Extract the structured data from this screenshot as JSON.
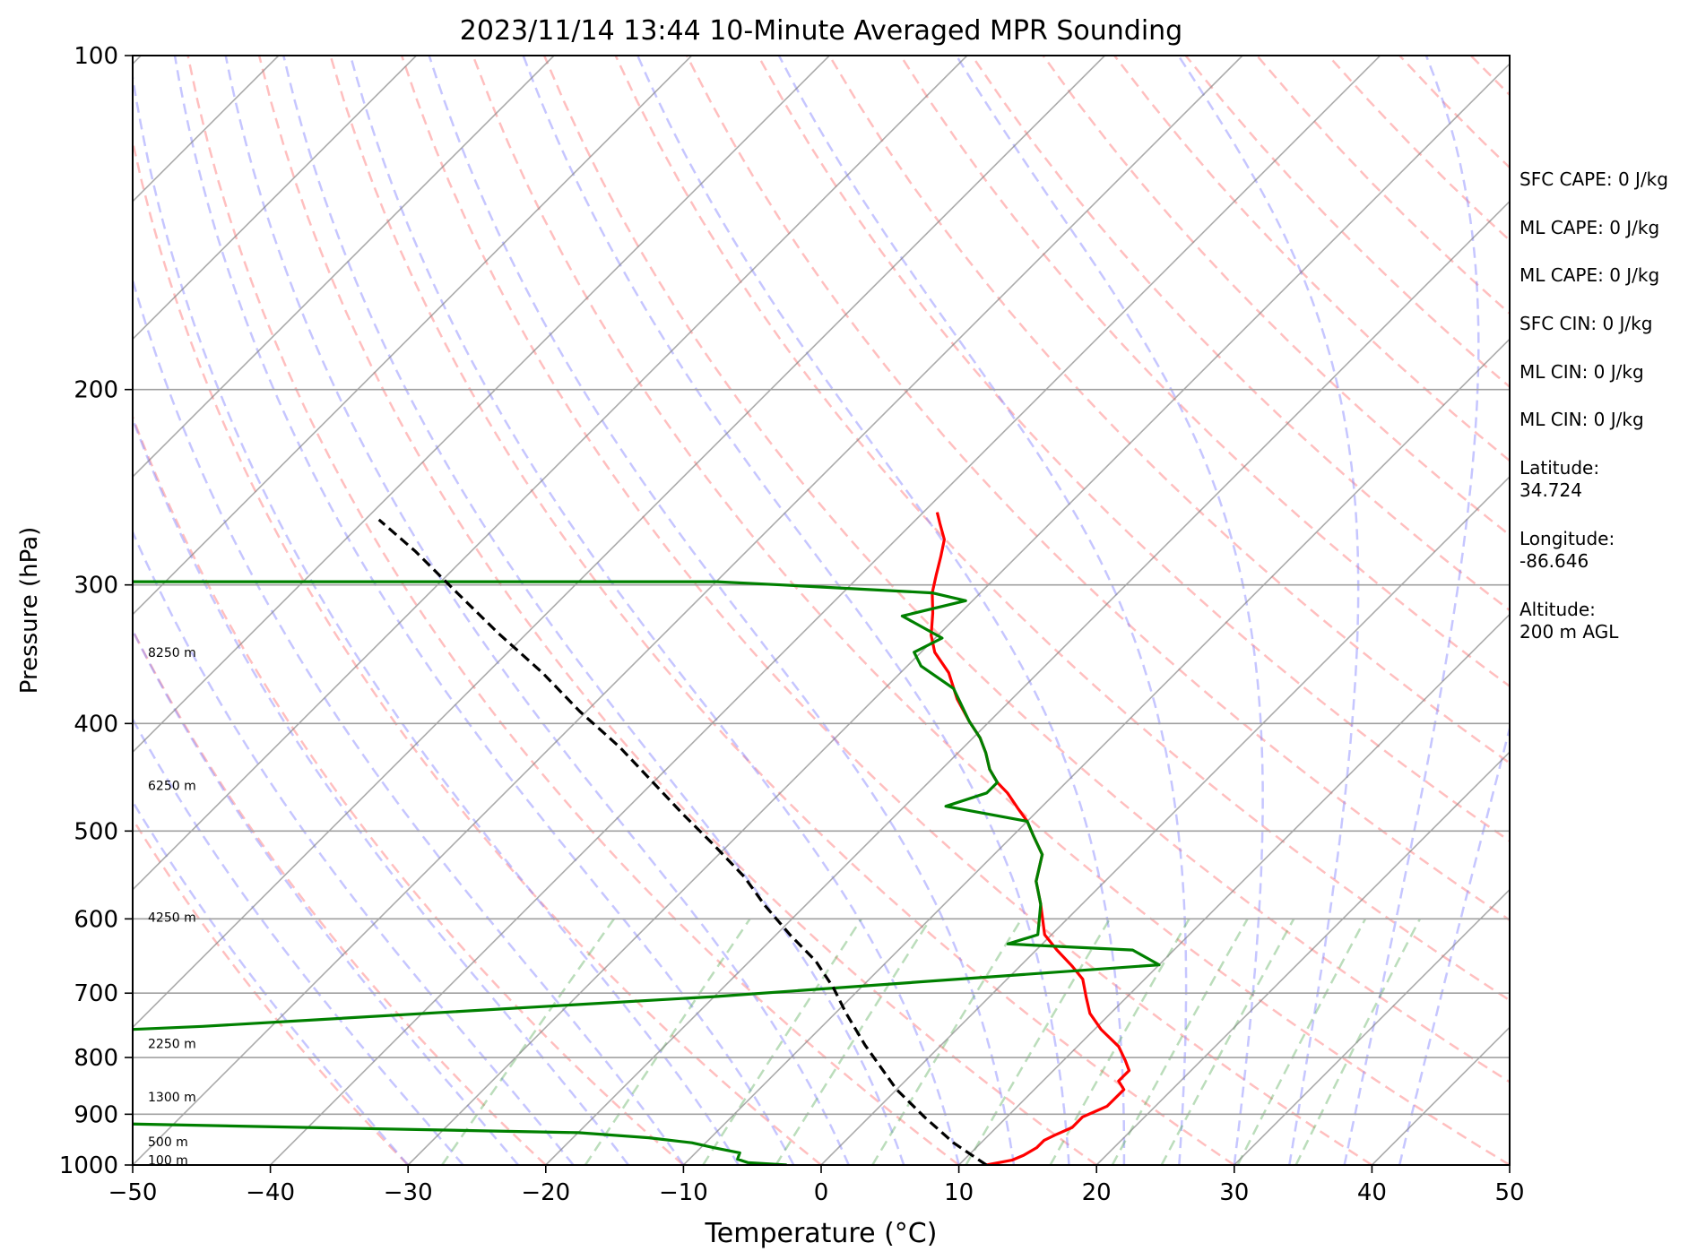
{
  "chart_data": {
    "type": "line",
    "title": "2023/11/14 13:44 10-Minute Averaged MPR Sounding",
    "xlabel": "Temperature (°C)",
    "ylabel": "Pressure (hPa)",
    "xlim": [
      -50,
      50
    ],
    "ylim": [
      1000,
      100
    ],
    "y_scale": "log",
    "skew_t": true,
    "x_ticks": [
      "−50",
      "−40",
      "−30",
      "−20",
      "−10",
      "0",
      "10",
      "20",
      "30",
      "40",
      "50"
    ],
    "y_ticks": [
      "100",
      "200",
      "300",
      "400",
      "500",
      "600",
      "700",
      "800",
      "900",
      "1000"
    ],
    "grid": true,
    "height_labels": [
      {
        "text": "8250 m",
        "p": 345
      },
      {
        "text": "6250 m",
        "p": 455
      },
      {
        "text": "4250 m",
        "p": 598
      },
      {
        "text": "2250 m",
        "p": 777
      },
      {
        "text": "1300 m",
        "p": 868
      },
      {
        "text": "500 m",
        "p": 953
      },
      {
        "text": "100 m",
        "p": 990
      }
    ],
    "series": [
      {
        "key": "temperature",
        "color": "#ff0000",
        "points": [
          [
            12,
            1000
          ],
          [
            13.5,
            990
          ],
          [
            14,
            980
          ],
          [
            14.4,
            965
          ],
          [
            14.4,
            950
          ],
          [
            14.8,
            940
          ],
          [
            15.5,
            925
          ],
          [
            15.5,
            905
          ],
          [
            16,
            895
          ],
          [
            16.5,
            885
          ],
          [
            16.5,
            870
          ],
          [
            16.5,
            855
          ],
          [
            15.5,
            840
          ],
          [
            15.5,
            822
          ],
          [
            14.5,
            805
          ],
          [
            13,
            782
          ],
          [
            10.5,
            755
          ],
          [
            8.5,
            730
          ],
          [
            7,
            705
          ],
          [
            5.5,
            680
          ],
          [
            3.8,
            662
          ],
          [
            1.5,
            640
          ],
          [
            -0.5,
            620
          ],
          [
            -3,
            582
          ],
          [
            -5,
            555
          ],
          [
            -6.5,
            525
          ],
          [
            -8.5,
            505
          ],
          [
            -10,
            490
          ],
          [
            -11.5,
            478
          ],
          [
            -13.5,
            462
          ],
          [
            -15,
            452
          ],
          [
            -16.5,
            440
          ],
          [
            -18,
            425
          ],
          [
            -19.5,
            412
          ],
          [
            -21.5,
            398
          ],
          [
            -24,
            380
          ],
          [
            -26.5,
            360
          ],
          [
            -29,
            345
          ],
          [
            -30.5,
            333
          ],
          [
            -32,
            318
          ],
          [
            -33.5,
            305
          ],
          [
            -34.5,
            294
          ],
          [
            -35.5,
            283
          ],
          [
            -36.5,
            273
          ],
          [
            -38,
            264
          ],
          [
            -39,
            258
          ]
        ]
      },
      {
        "key": "dewpoint",
        "color": "#008000",
        "points": [
          [
            -2.5,
            1000
          ],
          [
            -5.5,
            995
          ],
          [
            -6.5,
            988
          ],
          [
            -6.8,
            975
          ],
          [
            -9,
            965
          ],
          [
            -11,
            955
          ],
          [
            -14.5,
            945
          ],
          [
            -20,
            935
          ],
          [
            -40,
            925
          ],
          [
            -60,
            915
          ],
          [
            -95,
            900
          ],
          [
            -100,
            888
          ],
          [
            -110,
            875
          ],
          [
            -118,
            862
          ],
          [
            -118,
            850
          ],
          [
            -116,
            845
          ],
          [
            -116,
            835
          ],
          [
            -108,
            822
          ],
          [
            -103,
            810
          ],
          [
            -98,
            800
          ],
          [
            -97,
            792
          ],
          [
            -55,
            750
          ],
          [
            -20,
            705
          ],
          [
            10,
            660
          ],
          [
            7,
            640
          ],
          [
            -2.5,
            632
          ],
          [
            -1,
            620
          ],
          [
            -3,
            582
          ],
          [
            -5,
            555
          ],
          [
            -6.5,
            525
          ],
          [
            -8.5,
            505
          ],
          [
            -10,
            490
          ],
          [
            -17,
            475
          ],
          [
            -15,
            462
          ],
          [
            -15,
            452
          ],
          [
            -16.5,
            440
          ],
          [
            -18,
            425
          ],
          [
            -19.5,
            412
          ],
          [
            -21.5,
            398
          ],
          [
            -25,
            372
          ],
          [
            -29,
            355
          ],
          [
            -30.5,
            345
          ],
          [
            -29.5,
            335
          ],
          [
            -34,
            320
          ],
          [
            -30.5,
            310
          ],
          [
            -33.5,
            305
          ],
          [
            -45,
            300
          ],
          [
            -50,
            298
          ],
          [
            -60,
            298
          ],
          [
            -115,
            298
          ]
        ]
      },
      {
        "key": "parcel",
        "color": "#000000",
        "dashed": true,
        "points": [
          [
            12,
            1000
          ],
          [
            8,
            955
          ],
          [
            4,
            905
          ],
          [
            0,
            855
          ],
          [
            -5.5,
            780
          ],
          [
            -9.2,
            730
          ],
          [
            -12,
            692
          ],
          [
            -15.2,
            655
          ],
          [
            -19,
            620
          ],
          [
            -23,
            583
          ],
          [
            -26.5,
            550
          ],
          [
            -31,
            515
          ],
          [
            -35.5,
            483
          ],
          [
            -40,
            452
          ],
          [
            -45,
            420
          ],
          [
            -50.5,
            390
          ],
          [
            -56,
            360
          ],
          [
            -62,
            332
          ],
          [
            -68,
            305
          ],
          [
            -74,
            280
          ],
          [
            -79,
            262
          ]
        ]
      }
    ]
  },
  "info": [
    "SFC CAPE: 0 J/kg",
    "ML CAPE: 0 J/kg",
    "ML CAPE: 0 J/kg",
    "SFC CIN: 0 J/kg",
    "ML CIN: 0 J/kg",
    "ML CIN: 0 J/kg",
    "Latitude:\n34.724",
    "Longitude:\n-86.646",
    "Altitude:\n200 m AGL"
  ]
}
